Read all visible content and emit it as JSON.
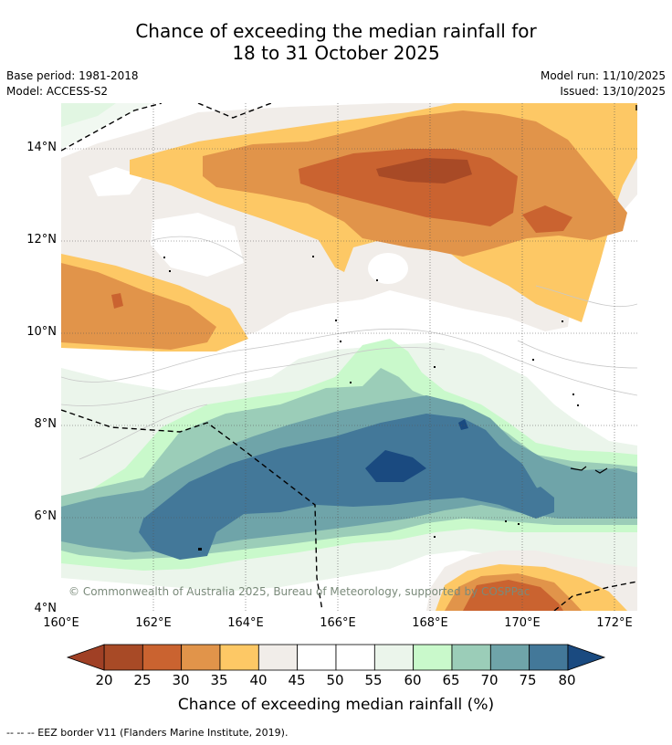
{
  "title": {
    "line1": "Chance of exceeding the median rainfall for",
    "line2": "18 to 31 October 2025"
  },
  "meta": {
    "base_period": "Base period: 1981-2018",
    "model": "Model: ACCESS-S2",
    "model_run": "Model run: 11/10/2025",
    "issued": "Issued: 13/10/2025"
  },
  "map": {
    "lat_labels": [
      "14°N",
      "12°N",
      "10°N",
      "8°N",
      "6°N",
      "4°N"
    ],
    "lon_labels": [
      "160°E",
      "162°E",
      "164°E",
      "166°E",
      "168°E",
      "170°E",
      "172°E"
    ],
    "copyright": "© Commonwealth of Australia 2025, Bureau of Meteorology, supported by COSPPac"
  },
  "colorbar": {
    "ticks": [
      "20",
      "25",
      "30",
      "35",
      "40",
      "45",
      "50",
      "55",
      "60",
      "65",
      "70",
      "75",
      "80"
    ],
    "colors": [
      "#a84a26",
      "#ca6330",
      "#e1944a",
      "#fdc865",
      "#f1ede9",
      "#ffffff",
      "#ffffff",
      "#ebf5eb",
      "#c9f9cb",
      "#9bcdb8",
      "#6fa4a9",
      "#437899"
    ],
    "low_color": "#a04025",
    "high_color": "#1a4a80",
    "label": "Chance of exceeding median rainfall (%)"
  },
  "footnote": "--  --  -- EEZ border V11 (Flanders Marine Institute, 2019)."
}
